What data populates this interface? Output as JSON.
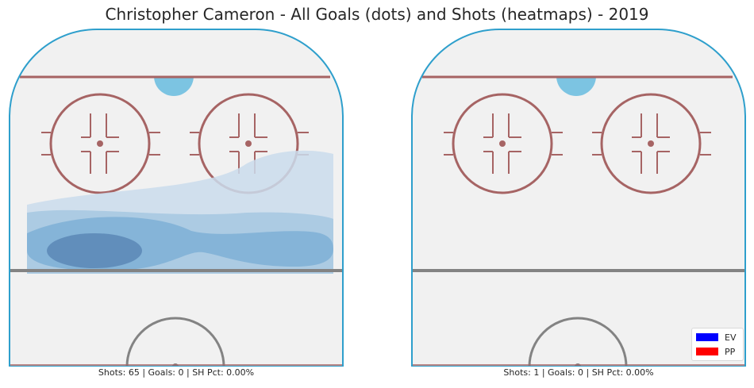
{
  "title": "Christopher Cameron - All Goals (dots) and Shots (heatmaps) - 2019",
  "colors": {
    "ice": "#f1f1f1",
    "boards": "#2e9fcc",
    "red_line": "#a66464",
    "blue_line": "#838383",
    "crease": "#7cc4e2",
    "heat": [
      "#cadcec",
      "#a3c6e0",
      "#7eb0d6",
      "#5d8ab8"
    ],
    "ev": "#0000ff",
    "pp": "#ff0000"
  },
  "panels": [
    {
      "id": "left",
      "stats": "Shots: 65 | Goals: 0 | SH Pct: 0.00%"
    },
    {
      "id": "right",
      "stats": "Shots: 1 | Goals: 0 | SH Pct: 0.00%"
    }
  ],
  "legend": {
    "ev": "EV",
    "pp": "PP"
  },
  "chart_data": [
    {
      "type": "heatmap",
      "panel": "left",
      "shots": 65,
      "goals": 0,
      "sh_pct": "0.00%",
      "density_levels": 4,
      "goal_dots": []
    },
    {
      "type": "heatmap",
      "panel": "right",
      "shots": 1,
      "goals": 0,
      "sh_pct": "0.00%",
      "density_levels": 0,
      "goal_dots": []
    }
  ]
}
